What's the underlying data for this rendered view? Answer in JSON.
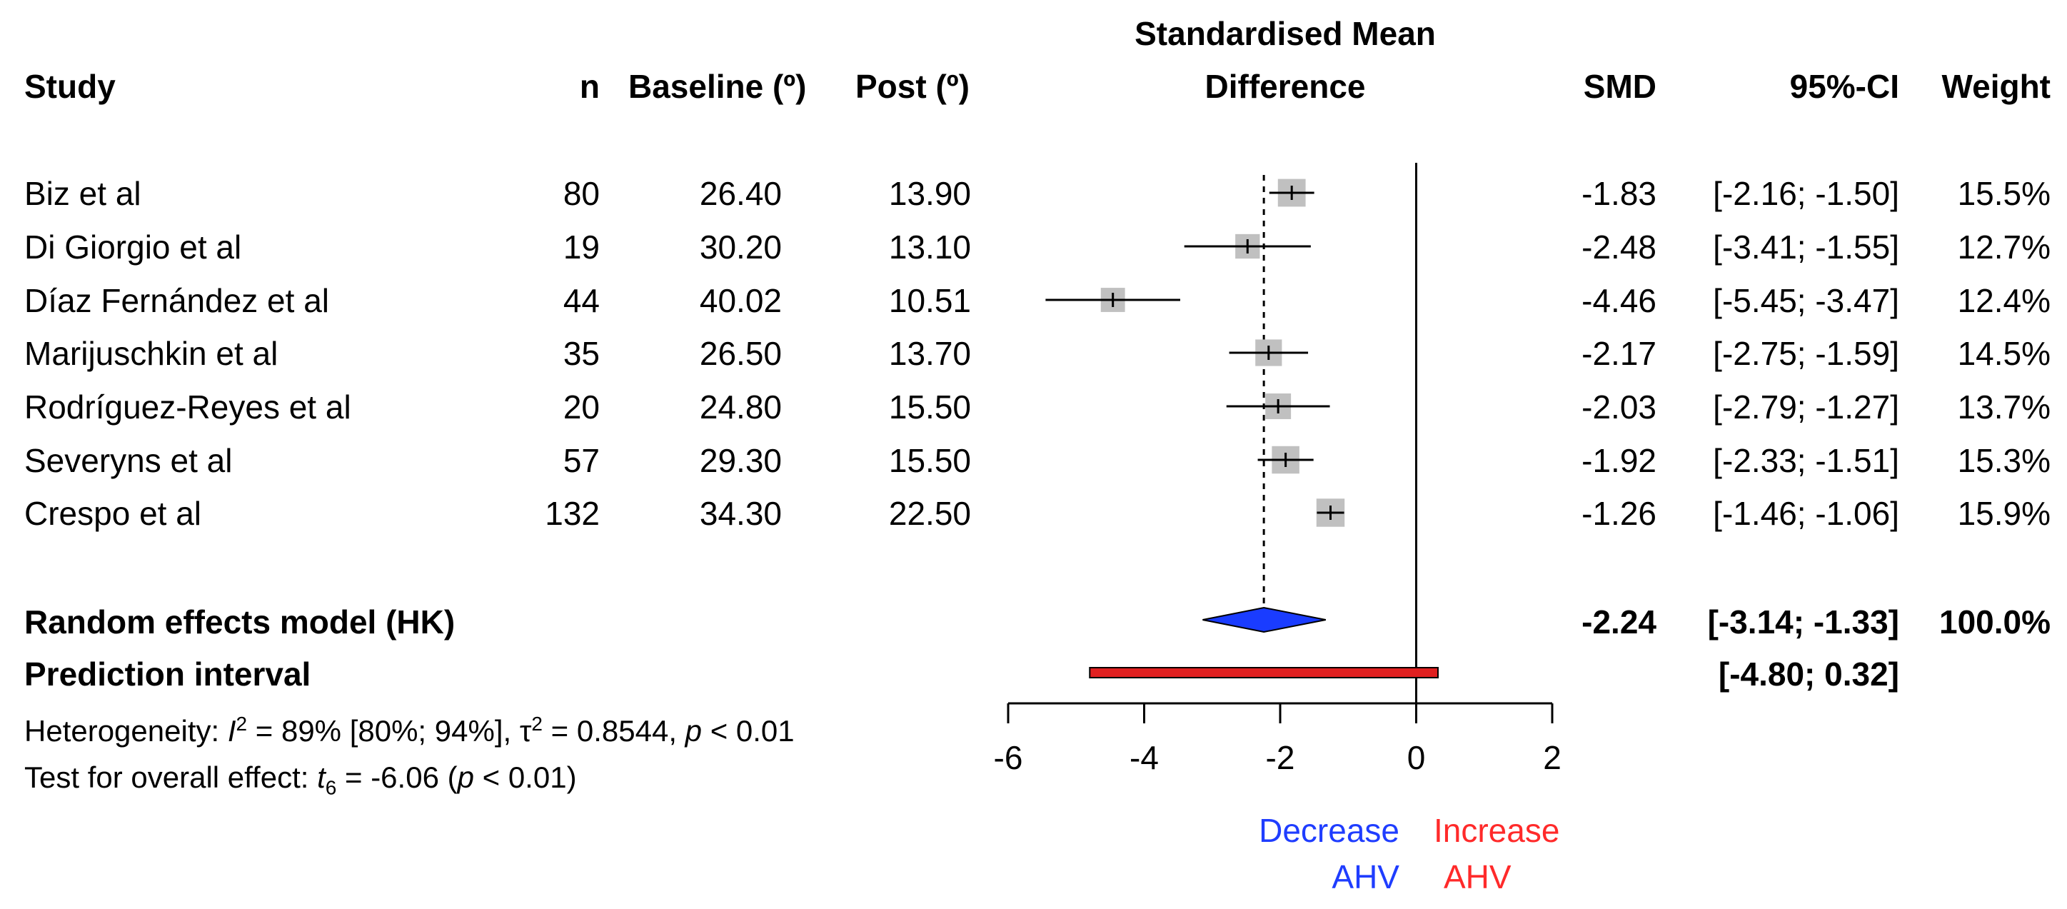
{
  "headers": {
    "study": "Study",
    "n": "n",
    "baseline": "Baseline (º)",
    "post": "Post (º)",
    "smd_line1": "Standardised Mean",
    "smd_line2": "Difference",
    "smd": "SMD",
    "ci": "95%-CI",
    "weight": "Weight"
  },
  "studies": [
    {
      "study": "Biz et al",
      "n": "80",
      "baseline": "26.40",
      "post": "13.90",
      "smd": "-1.83",
      "ci": "[-2.16; -1.50]",
      "weight": "15.5%"
    },
    {
      "study": "Di Giorgio et al",
      "n": "19",
      "baseline": "30.20",
      "post": "13.10",
      "smd": "-2.48",
      "ci": "[-3.41; -1.55]",
      "weight": "12.7%"
    },
    {
      "study": "Díaz Fernández et al",
      "n": "44",
      "baseline": "40.02",
      "post": "10.51",
      "smd": "-4.46",
      "ci": "[-5.45; -3.47]",
      "weight": "12.4%"
    },
    {
      "study": "Marijuschkin et al",
      "n": "35",
      "baseline": "26.50",
      "post": "13.70",
      "smd": "-2.17",
      "ci": "[-2.75; -1.59]",
      "weight": "14.5%"
    },
    {
      "study": "Rodríguez-Reyes et al",
      "n": "20",
      "baseline": "24.80",
      "post": "15.50",
      "smd": "-2.03",
      "ci": "[-2.79; -1.27]",
      "weight": "13.7%"
    },
    {
      "study": "Severyns et al",
      "n": "57",
      "baseline": "29.30",
      "post": "15.50",
      "smd": "-1.92",
      "ci": "[-2.33; -1.51]",
      "weight": "15.3%"
    },
    {
      "study": "Crespo et al",
      "n": "132",
      "baseline": "34.30",
      "post": "22.50",
      "smd": "-1.26",
      "ci": "[-1.46; -1.06]",
      "weight": "15.9%"
    }
  ],
  "summary": {
    "label": "Random effects model (HK)",
    "smd": "-2.24",
    "ci": "[-3.14; -1.33]",
    "weight": "100.0%"
  },
  "prediction": {
    "label": "Prediction interval",
    "ci": "[-4.80;  0.32]"
  },
  "heterogeneity": {
    "prefix": "Heterogeneity: ",
    "I": "I",
    "sup2": "2",
    "mid": " = 89% [80%; 94%], ",
    "tau": "τ",
    "mid2": " = 0.8544, ",
    "p": "p",
    "end": " < 0.01"
  },
  "overall": {
    "prefix": "Test for overall effect: ",
    "t": "t",
    "sub": "6",
    "mid": " = -6.06 (",
    "p": "p",
    "end": " < 0.01)"
  },
  "direction": {
    "left_line1": "Decrease",
    "left_line2": "AHV",
    "right_line1": "Increase",
    "right_line2": "AHV"
  },
  "colors": {
    "diamond": "#1a3cff",
    "prediction": "#e02020",
    "square": "#c0c0c0",
    "decrease": "#1f3dff",
    "increase": "#ff2a2a"
  },
  "chart_data": {
    "type": "forest",
    "title": "Standardised Mean Difference",
    "xlim": [
      -6,
      2
    ],
    "xticks": [
      "-6",
      "-4",
      "-2",
      "0",
      "2"
    ],
    "reference_line": 0,
    "summary_line": -2.24,
    "points": [
      {
        "study": "Biz et al",
        "est": -1.83,
        "lo": -2.16,
        "hi": -1.5,
        "weight": 15.5
      },
      {
        "study": "Di Giorgio et al",
        "est": -2.48,
        "lo": -3.41,
        "hi": -1.55,
        "weight": 12.7
      },
      {
        "study": "Díaz Fernández et al",
        "est": -4.46,
        "lo": -5.45,
        "hi": -3.47,
        "weight": 12.4
      },
      {
        "study": "Marijuschkin et al",
        "est": -2.17,
        "lo": -2.75,
        "hi": -1.59,
        "weight": 14.5
      },
      {
        "study": "Rodríguez-Reyes et al",
        "est": -2.03,
        "lo": -2.79,
        "hi": -1.27,
        "weight": 13.7
      },
      {
        "study": "Severyns et al",
        "est": -1.92,
        "lo": -2.33,
        "hi": -1.51,
        "weight": 15.3
      },
      {
        "study": "Crespo et al",
        "est": -1.26,
        "lo": -1.46,
        "hi": -1.06,
        "weight": 15.9
      }
    ],
    "summary": {
      "est": -2.24,
      "lo": -3.14,
      "hi": -1.33
    },
    "prediction": {
      "lo": -4.8,
      "hi": 0.32
    }
  }
}
